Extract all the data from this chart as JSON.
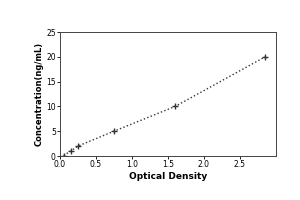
{
  "x_data": [
    0.05,
    0.15,
    0.25,
    0.75,
    1.6,
    2.85
  ],
  "y_data": [
    0.1,
    1.0,
    2.0,
    5.0,
    10.0,
    20.0
  ],
  "xlabel": "Optical Density",
  "ylabel": "Concentration(ng/mL)",
  "xlim": [
    0,
    3.0
  ],
  "ylim": [
    0,
    25
  ],
  "xticks": [
    0,
    0.5,
    1.0,
    1.5,
    2.0,
    2.5
  ],
  "yticks": [
    0,
    5,
    10,
    15,
    20,
    25
  ],
  "line_color": "#333333",
  "marker_color": "#333333",
  "background_color": "#ffffff",
  "border_color": "#999999",
  "line_style": "dotted",
  "marker_style": "+"
}
